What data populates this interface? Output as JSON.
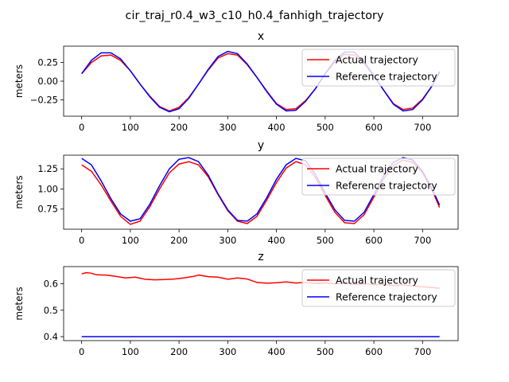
{
  "figure": {
    "suptitle": "cir_traj_r0.4_w3_c10_h0.4_fanhigh_trajectory"
  },
  "colors": {
    "actual": "#ff0000",
    "reference": "#0000ff",
    "axes": "#000000",
    "legend_border": "#cccccc"
  },
  "chart_data": [
    {
      "type": "line",
      "title": "x",
      "xlabel": "",
      "ylabel": "meters",
      "xlim": [
        -37,
        773
      ],
      "ylim": [
        -0.47,
        0.47
      ],
      "xticks": [
        0,
        100,
        200,
        300,
        400,
        500,
        600,
        700
      ],
      "yticks": [
        -0.25,
        0.0,
        0.25
      ],
      "ytick_labels": [
        "−0.25",
        "0.00",
        "0.25"
      ],
      "legend": "top-right",
      "grid": false,
      "series": [
        {
          "name": "Actual trajectory",
          "color": "#ff0000",
          "x": [
            0,
            20,
            40,
            60,
            80,
            100,
            120,
            140,
            160,
            180,
            200,
            220,
            240,
            260,
            280,
            300,
            320,
            340,
            360,
            380,
            400,
            420,
            440,
            460,
            480,
            500,
            520,
            540,
            560,
            580,
            600,
            620,
            640,
            660,
            680,
            700,
            720,
            735
          ],
          "y": [
            0.1,
            0.25,
            0.34,
            0.35,
            0.28,
            0.14,
            -0.04,
            -0.2,
            -0.34,
            -0.4,
            -0.35,
            -0.22,
            -0.04,
            0.15,
            0.31,
            0.37,
            0.35,
            0.22,
            0.05,
            -0.13,
            -0.3,
            -0.38,
            -0.37,
            -0.26,
            -0.1,
            0.1,
            0.26,
            0.36,
            0.35,
            0.24,
            0.07,
            -0.12,
            -0.3,
            -0.38,
            -0.36,
            -0.24,
            -0.06,
            0.12
          ]
        },
        {
          "name": "Reference trajectory",
          "color": "#0000ff",
          "x": [
            0,
            20,
            40,
            60,
            80,
            100,
            120,
            140,
            160,
            180,
            200,
            220,
            240,
            260,
            280,
            300,
            320,
            340,
            360,
            380,
            400,
            420,
            440,
            460,
            480,
            500,
            520,
            540,
            560,
            580,
            600,
            620,
            640,
            660,
            680,
            700,
            720,
            735
          ],
          "y": [
            0.1,
            0.28,
            0.38,
            0.38,
            0.3,
            0.14,
            -0.04,
            -0.21,
            -0.35,
            -0.41,
            -0.37,
            -0.23,
            -0.04,
            0.16,
            0.33,
            0.4,
            0.37,
            0.23,
            0.05,
            -0.14,
            -0.31,
            -0.4,
            -0.39,
            -0.27,
            -0.1,
            0.1,
            0.28,
            0.39,
            0.39,
            0.26,
            0.08,
            -0.12,
            -0.31,
            -0.4,
            -0.38,
            -0.25,
            -0.06,
            0.13
          ]
        }
      ]
    },
    {
      "type": "line",
      "title": "y",
      "xlabel": "",
      "ylabel": "meters",
      "xlim": [
        -37,
        773
      ],
      "ylim": [
        0.5,
        1.42
      ],
      "xticks": [
        0,
        100,
        200,
        300,
        400,
        500,
        600,
        700
      ],
      "yticks": [
        0.75,
        1.0,
        1.25
      ],
      "ytick_labels": [
        "0.75",
        "1.00",
        "1.25"
      ],
      "legend": "top-right",
      "grid": false,
      "series": [
        {
          "name": "Actual trajectory",
          "color": "#ff0000",
          "x": [
            0,
            20,
            40,
            60,
            80,
            100,
            120,
            140,
            160,
            180,
            200,
            220,
            240,
            260,
            280,
            300,
            320,
            340,
            360,
            380,
            400,
            420,
            440,
            460,
            480,
            500,
            520,
            540,
            560,
            580,
            600,
            620,
            640,
            660,
            680,
            700,
            720,
            735
          ],
          "y": [
            1.3,
            1.22,
            1.05,
            0.85,
            0.66,
            0.56,
            0.6,
            0.78,
            1.0,
            1.2,
            1.31,
            1.34,
            1.3,
            1.15,
            0.93,
            0.73,
            0.6,
            0.57,
            0.66,
            0.86,
            1.08,
            1.26,
            1.34,
            1.3,
            1.14,
            0.92,
            0.71,
            0.58,
            0.57,
            0.68,
            0.9,
            1.12,
            1.29,
            1.36,
            1.33,
            1.2,
            0.98,
            0.77
          ]
        },
        {
          "name": "Reference trajectory",
          "color": "#0000ff",
          "x": [
            0,
            20,
            40,
            60,
            80,
            100,
            120,
            140,
            160,
            180,
            200,
            220,
            240,
            260,
            280,
            300,
            320,
            340,
            360,
            380,
            400,
            420,
            440,
            460,
            480,
            500,
            520,
            540,
            560,
            580,
            600,
            620,
            640,
            660,
            680,
            700,
            720,
            735
          ],
          "y": [
            1.38,
            1.3,
            1.1,
            0.88,
            0.69,
            0.6,
            0.63,
            0.81,
            1.04,
            1.25,
            1.37,
            1.39,
            1.34,
            1.17,
            0.94,
            0.74,
            0.61,
            0.6,
            0.69,
            0.89,
            1.12,
            1.3,
            1.38,
            1.35,
            1.18,
            0.95,
            0.74,
            0.61,
            0.6,
            0.71,
            0.93,
            1.16,
            1.33,
            1.39,
            1.36,
            1.22,
            1.0,
            0.8
          ]
        }
      ]
    },
    {
      "type": "line",
      "title": "z",
      "xlabel": "",
      "ylabel": "meters",
      "xlim": [
        -37,
        773
      ],
      "ylim": [
        0.385,
        0.665
      ],
      "xticks": [
        0,
        100,
        200,
        300,
        400,
        500,
        600,
        700
      ],
      "yticks": [
        0.4,
        0.5,
        0.6
      ],
      "ytick_labels": [
        "0.4",
        "0.5",
        "0.6"
      ],
      "legend": "top-right",
      "grid": false,
      "series": [
        {
          "name": "Actual trajectory",
          "color": "#ff0000",
          "x": [
            0,
            10,
            20,
            30,
            50,
            70,
            90,
            110,
            130,
            150,
            170,
            190,
            210,
            230,
            240,
            260,
            280,
            300,
            320,
            340,
            360,
            380,
            400,
            420,
            440,
            460,
            480,
            500,
            520,
            540,
            560,
            580,
            600,
            620,
            640,
            660,
            680,
            700,
            720,
            735
          ],
          "y": [
            0.638,
            0.642,
            0.64,
            0.634,
            0.633,
            0.628,
            0.622,
            0.625,
            0.617,
            0.615,
            0.616,
            0.618,
            0.622,
            0.628,
            0.633,
            0.627,
            0.625,
            0.617,
            0.622,
            0.618,
            0.605,
            0.602,
            0.604,
            0.607,
            0.603,
            0.605,
            0.601,
            0.604,
            0.6,
            0.602,
            0.598,
            0.6,
            0.597,
            0.598,
            0.594,
            0.596,
            0.592,
            0.589,
            0.586,
            0.583
          ]
        },
        {
          "name": "Reference trajectory",
          "color": "#0000ff",
          "x": [
            0,
            735
          ],
          "y": [
            0.4,
            0.4
          ]
        }
      ]
    }
  ]
}
